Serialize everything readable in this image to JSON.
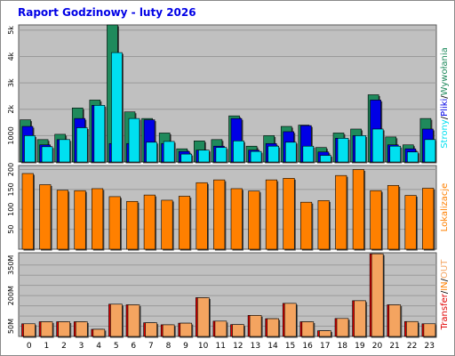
{
  "title": "Raport Godzinowy -  luty 2026",
  "colors": {
    "plot_bg": "#c0c0c0",
    "hits": "#1f8a5c",
    "files": "#0000e6",
    "pages": "#00e0f0",
    "visits": "#ff8000",
    "kbin": "#e00000",
    "kbout": "#f4a460",
    "grid": "#9a9a9a"
  },
  "chart_data": [
    {
      "type": "bar",
      "name": "requests",
      "categories": [
        "0",
        "1",
        "2",
        "3",
        "4",
        "5",
        "6",
        "7",
        "8",
        "9",
        "10",
        "11",
        "12",
        "13",
        "14",
        "15",
        "16",
        "17",
        "18",
        "19",
        "20",
        "21",
        "22",
        "23"
      ],
      "ylim": [
        0,
        5200
      ],
      "yticks": [
        1000,
        2000,
        3000,
        4000,
        5000
      ],
      "ytick_labels": [
        "1000",
        "2k",
        "3k",
        "4k",
        "5k"
      ],
      "legend_placement": "right",
      "series": [
        {
          "name": "Wywołania",
          "values": [
            1600,
            850,
            1050,
            2050,
            2350,
            5200,
            1900,
            1650,
            1100,
            500,
            800,
            850,
            1750,
            600,
            1000,
            1350,
            1400,
            550,
            1100,
            1250,
            2550,
            950,
            650,
            1650
          ]
        },
        {
          "name": "Pliki",
          "values": [
            1350,
            650,
            850,
            1650,
            2150,
            700,
            700,
            1600,
            700,
            400,
            450,
            600,
            1650,
            450,
            700,
            1150,
            1380,
            380,
            900,
            1000,
            2350,
            650,
            500,
            1250
          ]
        },
        {
          "name": "Strony",
          "values": [
            1000,
            580,
            850,
            1300,
            2150,
            4150,
            1650,
            750,
            780,
            300,
            450,
            550,
            800,
            400,
            600,
            750,
            600,
            250,
            900,
            1000,
            1250,
            600,
            380,
            850
          ]
        }
      ]
    },
    {
      "type": "bar",
      "name": "visits",
      "categories": [
        "0",
        "1",
        "2",
        "3",
        "4",
        "5",
        "6",
        "7",
        "8",
        "9",
        "10",
        "11",
        "12",
        "13",
        "14",
        "15",
        "16",
        "17",
        "18",
        "19",
        "20",
        "21",
        "22",
        "23"
      ],
      "ylim": [
        0,
        210
      ],
      "yticks": [
        50,
        100,
        150,
        200
      ],
      "ytick_labels": [
        "50",
        "100",
        "150",
        "200"
      ],
      "series": [
        {
          "name": "Lokalizacje",
          "values": [
            190,
            162,
            148,
            147,
            152,
            132,
            120,
            136,
            123,
            133,
            167,
            174,
            152,
            146,
            174,
            178,
            118,
            122,
            185,
            200,
            147,
            160,
            135,
            153
          ]
        }
      ]
    },
    {
      "type": "bar",
      "name": "transfer",
      "categories": [
        "0",
        "1",
        "2",
        "3",
        "4",
        "5",
        "6",
        "7",
        "8",
        "9",
        "10",
        "11",
        "12",
        "13",
        "14",
        "15",
        "16",
        "17",
        "18",
        "19",
        "20",
        "21",
        "22",
        "23"
      ],
      "ylim": [
        0,
        410
      ],
      "yticks": [
        50,
        100,
        150,
        200,
        250,
        300,
        350
      ],
      "ytick_labels": [
        "50M",
        "",
        "",
        "200M",
        "",
        "",
        "350M"
      ],
      "series": [
        {
          "name": "IN",
          "values": [
            62,
            72,
            72,
            72,
            35,
            158,
            155,
            67,
            57,
            65,
            190,
            75,
            58,
            103,
            87,
            162,
            72,
            28,
            88,
            175,
            405,
            155,
            73,
            62
          ]
        },
        {
          "name": "OUT",
          "values": [
            62,
            72,
            72,
            72,
            35,
            158,
            155,
            67,
            57,
            65,
            190,
            75,
            58,
            103,
            87,
            162,
            72,
            28,
            88,
            175,
            405,
            155,
            73,
            62
          ]
        }
      ]
    }
  ],
  "side_labels": {
    "top": [
      "Strony",
      "Pliki",
      "Wywołania"
    ],
    "top_sep": "/",
    "middle": "Lokalizacje",
    "bottom": [
      "Transfer",
      "IN",
      "OUT"
    ],
    "bottom_sep": "/"
  }
}
